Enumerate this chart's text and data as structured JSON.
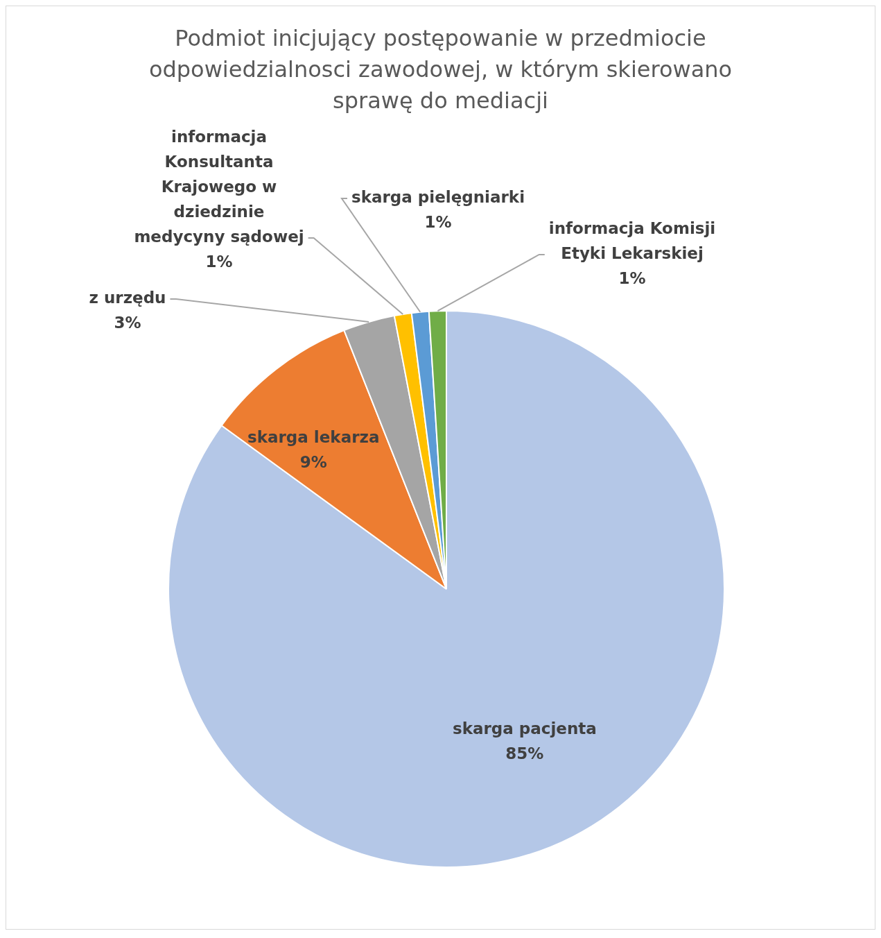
{
  "chart_data": {
    "type": "pie",
    "title": "Podmiot inicjujący postępowanie w przedmiocie odpowiedzialnosci zawodowej, w którym skierowano sprawę do mediacji",
    "categories": [
      "skarga pacjenta",
      "skarga lekarza",
      "z urzędu",
      "informacja Konsultanta Krajowego w dziedzinie medycyny sądowej",
      "skarga pielęgniarki",
      "informacja Komisji Etyki Lekarskiej"
    ],
    "values": [
      85,
      9,
      3,
      1,
      1,
      1
    ],
    "value_labels": [
      "85%",
      "9%",
      "3%",
      "1%",
      "1%",
      "1%"
    ],
    "colors": [
      "#b4c7e7",
      "#ed7d31",
      "#a5a5a5",
      "#ffc000",
      "#5b9bd5",
      "#70ad47"
    ],
    "legend": false
  }
}
